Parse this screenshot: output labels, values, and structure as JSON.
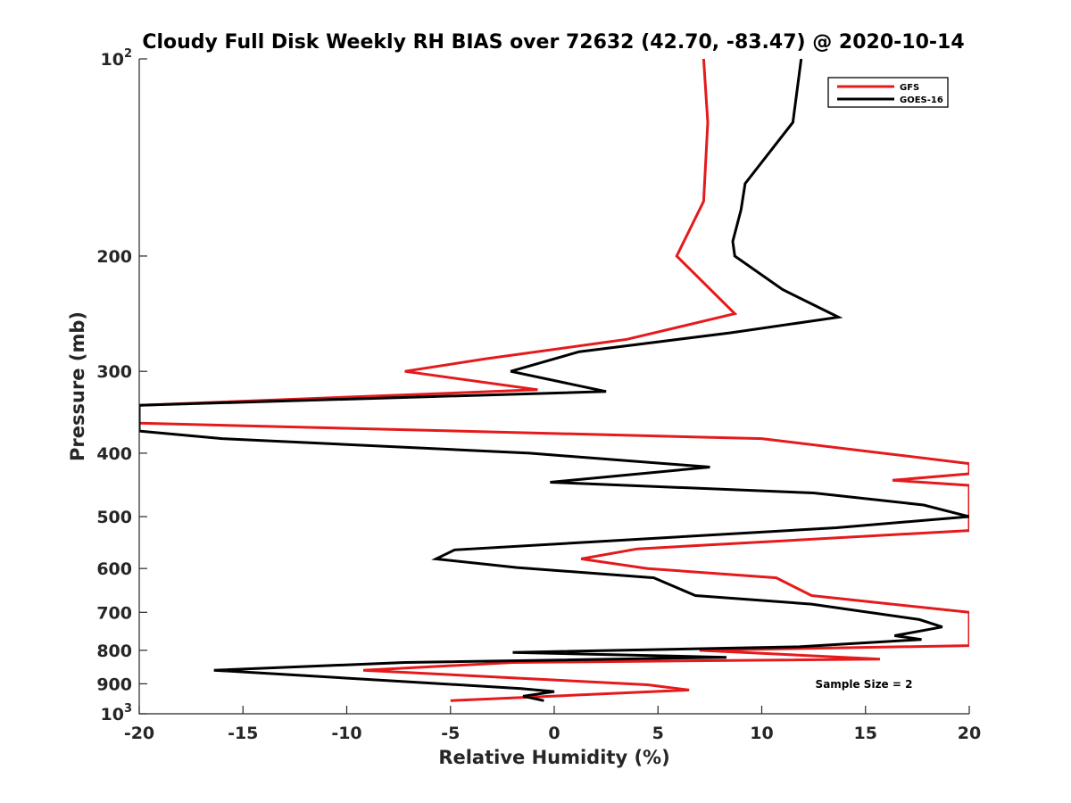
{
  "chart_data": {
    "type": "line",
    "title": "Cloudy Full Disk Weekly RH BIAS over 72632 (42.70, -83.47) @ 2020-10-14",
    "xlabel": "Relative Humidity (%)",
    "ylabel": "Pressure (mb)",
    "xlim": [
      -20,
      20
    ],
    "ylim": [
      100,
      1000
    ],
    "yscale": "log",
    "y_reversed": true,
    "grid": false,
    "legend_position": "top-right",
    "x_ticks": [
      -20,
      -15,
      -10,
      -5,
      0,
      5,
      10,
      15,
      20
    ],
    "x_tick_labels": [
      "-20",
      "-15",
      "-10",
      "-5",
      "0",
      "5",
      "10",
      "15",
      "20"
    ],
    "y_ticks": [
      100,
      200,
      300,
      400,
      500,
      600,
      700,
      800,
      900,
      1000
    ],
    "y_tick_labels": [
      {
        "base": "10",
        "exp": "2"
      },
      {
        "base": "200",
        "exp": ""
      },
      {
        "base": "300",
        "exp": ""
      },
      {
        "base": "400",
        "exp": ""
      },
      {
        "base": "500",
        "exp": ""
      },
      {
        "base": "600",
        "exp": ""
      },
      {
        "base": "700",
        "exp": ""
      },
      {
        "base": "800",
        "exp": ""
      },
      {
        "base": "900",
        "exp": ""
      },
      {
        "base": "10",
        "exp": "3"
      }
    ],
    "annotation": "Sample Size = 2",
    "series": [
      {
        "name": "GFS",
        "color": "#e41a1c",
        "points": [
          {
            "x": 7.2,
            "y": 100
          },
          {
            "x": 7.4,
            "y": 125
          },
          {
            "x": 7.2,
            "y": 165
          },
          {
            "x": 5.9,
            "y": 200
          },
          {
            "x": 8.7,
            "y": 245
          },
          {
            "x": 3.5,
            "y": 268
          },
          {
            "x": -3.3,
            "y": 287
          },
          {
            "x": -7.2,
            "y": 300
          },
          {
            "x": -0.8,
            "y": 320
          },
          {
            "x": -20,
            "y": 338
          },
          {
            "x": -20,
            "y": 360
          },
          {
            "x": 10,
            "y": 380
          },
          {
            "x": 20,
            "y": 415
          },
          {
            "x": 20,
            "y": 430
          },
          {
            "x": 16.3,
            "y": 440
          },
          {
            "x": 20,
            "y": 448
          },
          {
            "x": 20,
            "y": 525
          },
          {
            "x": 4.0,
            "y": 560
          },
          {
            "x": 1.3,
            "y": 580
          },
          {
            "x": 4.5,
            "y": 600
          },
          {
            "x": 10.7,
            "y": 620
          },
          {
            "x": 12.4,
            "y": 660
          },
          {
            "x": 20,
            "y": 700
          },
          {
            "x": 20,
            "y": 787
          },
          {
            "x": 7.0,
            "y": 800
          },
          {
            "x": 15.7,
            "y": 825
          },
          {
            "x": -2.0,
            "y": 835
          },
          {
            "x": -9.2,
            "y": 858
          },
          {
            "x": 4.5,
            "y": 903
          },
          {
            "x": 6.5,
            "y": 920
          },
          {
            "x": -5.0,
            "y": 955
          }
        ]
      },
      {
        "name": "GOES-16",
        "color": "#000000",
        "points": [
          {
            "x": 11.9,
            "y": 100
          },
          {
            "x": 11.5,
            "y": 125
          },
          {
            "x": 9.2,
            "y": 155
          },
          {
            "x": 9.0,
            "y": 170
          },
          {
            "x": 8.6,
            "y": 190
          },
          {
            "x": 8.7,
            "y": 200
          },
          {
            "x": 11.0,
            "y": 225
          },
          {
            "x": 13.7,
            "y": 248
          },
          {
            "x": 8.5,
            "y": 262
          },
          {
            "x": 1.2,
            "y": 280
          },
          {
            "x": -2.1,
            "y": 300
          },
          {
            "x": 2.5,
            "y": 322
          },
          {
            "x": -20,
            "y": 338
          },
          {
            "x": -20,
            "y": 370
          },
          {
            "x": -16.0,
            "y": 380
          },
          {
            "x": -1.2,
            "y": 400
          },
          {
            "x": 7.5,
            "y": 420
          },
          {
            "x": -0.2,
            "y": 443
          },
          {
            "x": 12.5,
            "y": 460
          },
          {
            "x": 17.8,
            "y": 480
          },
          {
            "x": 20,
            "y": 500
          },
          {
            "x": 13.6,
            "y": 520
          },
          {
            "x": -4.8,
            "y": 562
          },
          {
            "x": -5.7,
            "y": 580
          },
          {
            "x": -1.8,
            "y": 598
          },
          {
            "x": 4.8,
            "y": 620
          },
          {
            "x": 6.8,
            "y": 660
          },
          {
            "x": 12.4,
            "y": 680
          },
          {
            "x": 17.6,
            "y": 718
          },
          {
            "x": 18.7,
            "y": 737
          },
          {
            "x": 16.4,
            "y": 760
          },
          {
            "x": 17.7,
            "y": 770
          },
          {
            "x": 11.8,
            "y": 790
          },
          {
            "x": -2.0,
            "y": 806
          },
          {
            "x": 8.3,
            "y": 820
          },
          {
            "x": -7.2,
            "y": 835
          },
          {
            "x": -16.4,
            "y": 858
          },
          {
            "x": -1.6,
            "y": 915
          },
          {
            "x": 0.0,
            "y": 925
          },
          {
            "x": -1.5,
            "y": 940
          },
          {
            "x": -0.5,
            "y": 955
          }
        ]
      }
    ]
  }
}
